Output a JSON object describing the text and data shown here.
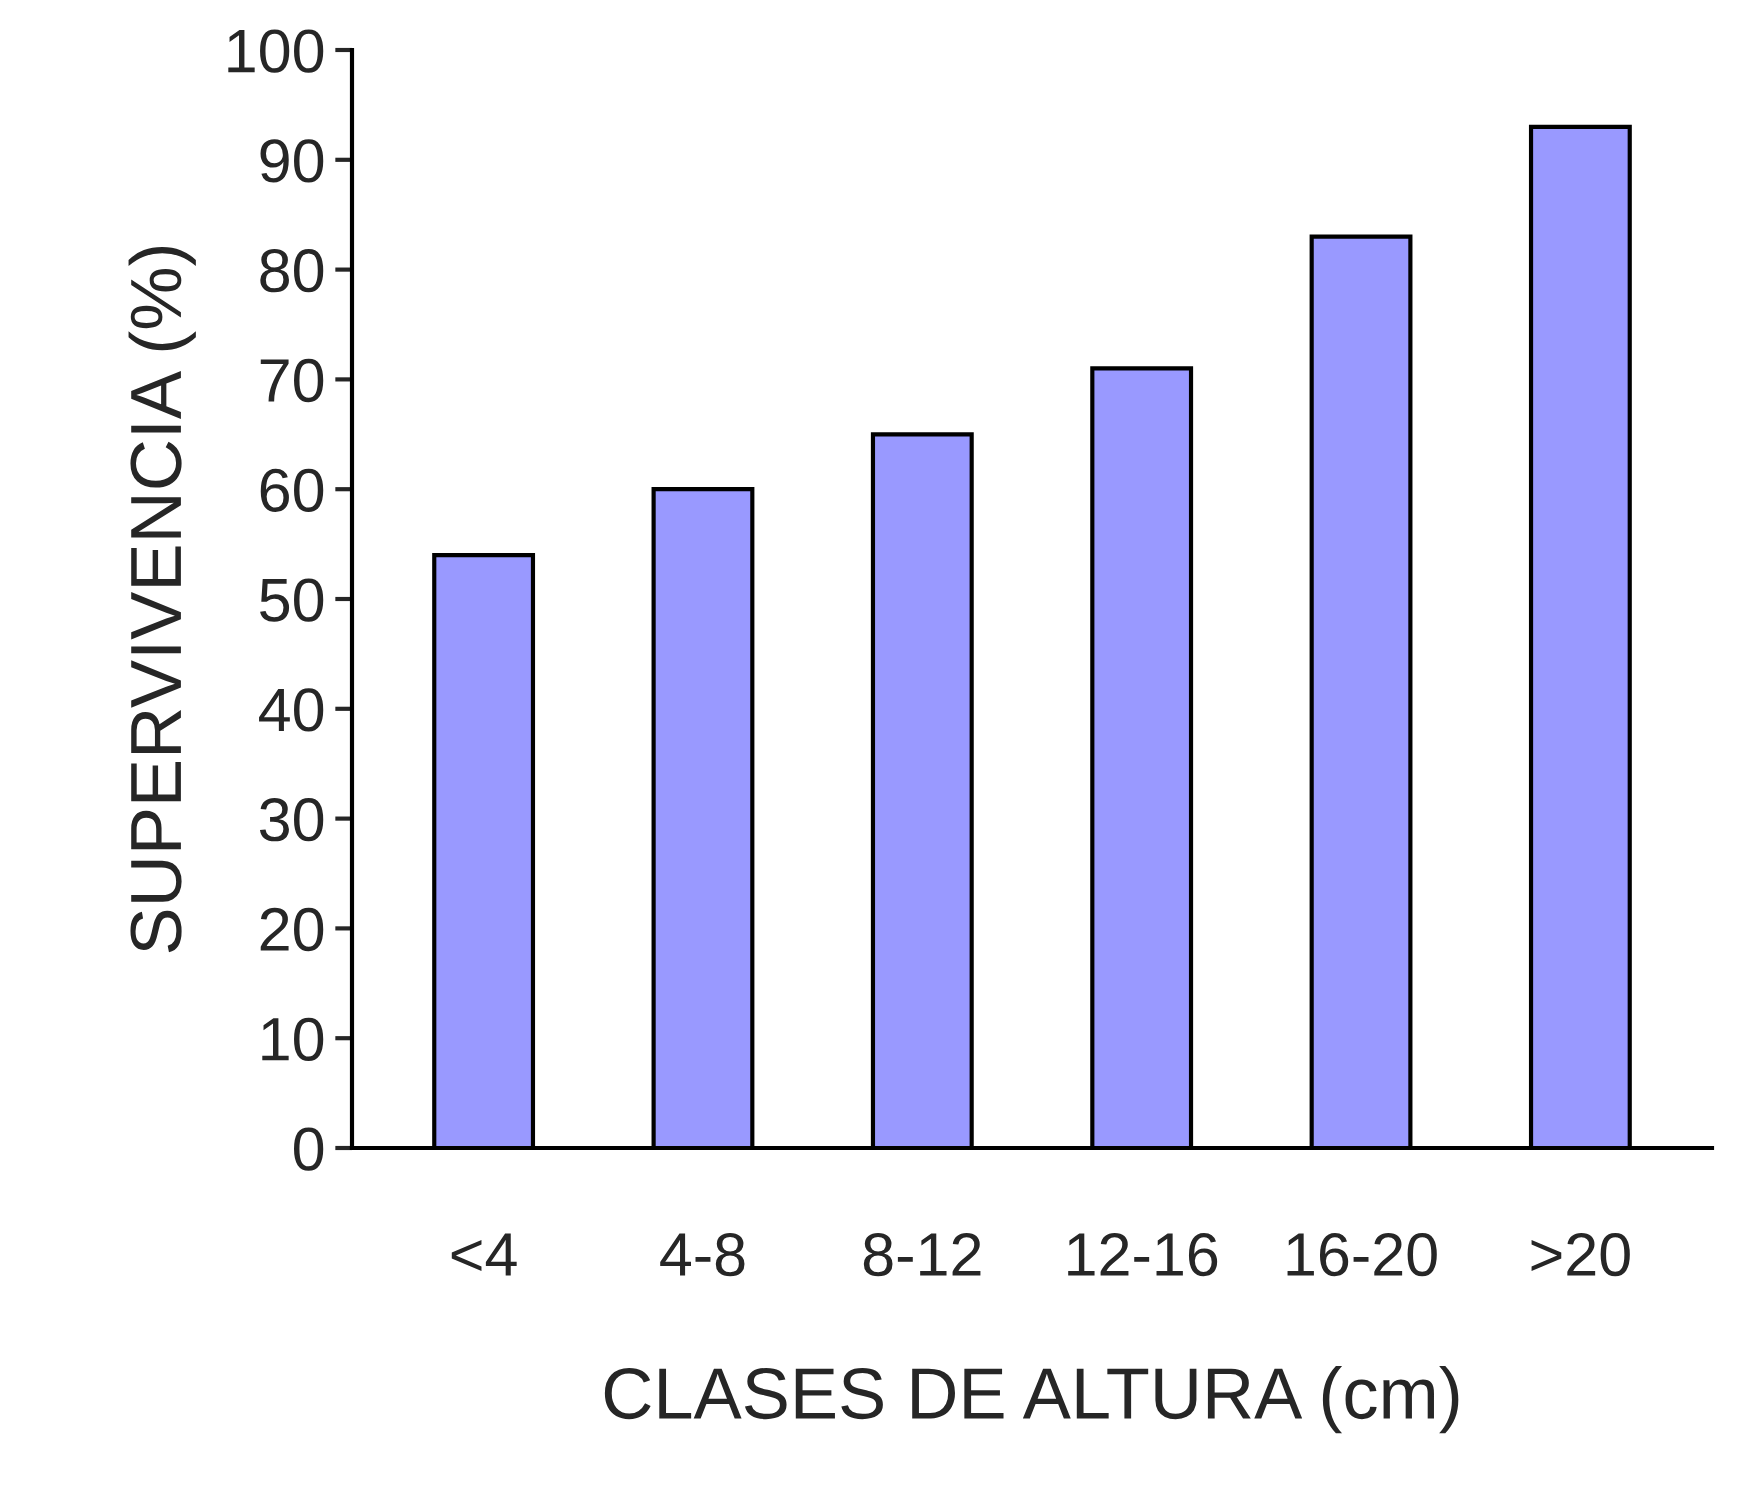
{
  "chart_data": {
    "type": "bar",
    "xlabel": "CLASES DE ALTURA (cm)",
    "ylabel": "SUPERVIVENCIA (%)",
    "categories": [
      "<4",
      "4-8",
      "8-12",
      "12-16",
      "16-20",
      ">20"
    ],
    "values": [
      54,
      60,
      65,
      71,
      83,
      93
    ],
    "color": "#9999ff",
    "ylim": [
      0,
      100
    ],
    "yticks": [
      0,
      10,
      20,
      30,
      40,
      50,
      60,
      70,
      80,
      90,
      100
    ],
    "grid": false,
    "legend": false
  }
}
